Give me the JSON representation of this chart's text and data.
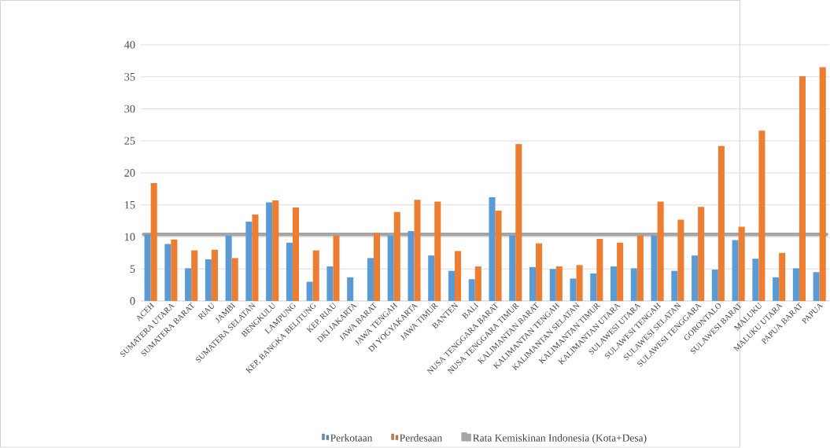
{
  "chart_data": {
    "type": "bar",
    "categories": [
      "ACEH",
      "SUMATERA UTARA",
      "SUMATERA BARAT",
      "RIAU",
      "JAMBI",
      "SUMATERA SELATAN",
      "BENGKULU",
      "LAMPUNG",
      "KEP, BANGKA BELITUNG",
      "KEP. RIAU",
      "DKI JAKARTA",
      "JAWA BARAT",
      "JAWA TENGAH",
      "DI YOGYAKARTA",
      "JAWA TIMUR",
      "BANTEN",
      "BALI",
      "NUSA TENGGARA BARAT",
      "NUSA TENGGARA TIMUR",
      "KALIMANTAN BARAT",
      "KALIMANTAN TENGAH",
      "KALIMANTAN SELATAN",
      "KALIMANTAN TIMUR",
      "KALIMANTAN UTARA",
      "SULAWESI UTARA",
      "SULAWESI TENGAH",
      "SULAWESI SELATAN",
      "SULAWESI TENGGARA",
      "GORONTALO",
      "SULAWESI BARAT",
      "MALUKU",
      "MALUKU UTARA",
      "PAPUA BARAT",
      "PAPUA"
    ],
    "series": [
      {
        "name": "Perkotaan",
        "color": "#5b9bd5",
        "values": [
          10.4,
          8.9,
          5.1,
          6.5,
          10.2,
          12.4,
          15.4,
          9.1,
          3.0,
          5.4,
          3.7,
          6.7,
          10.2,
          10.9,
          7.1,
          4.7,
          3.4,
          16.2,
          10.2,
          5.3,
          5.0,
          3.5,
          4.3,
          5.4,
          5.1,
          10.2,
          4.7,
          7.1,
          4.9,
          9.5,
          6.6,
          3.7,
          5.1,
          4.5
        ]
      },
      {
        "name": "Perdesaan",
        "color": "#ed7d31",
        "values": [
          18.4,
          9.6,
          7.9,
          8.0,
          6.7,
          13.5,
          15.7,
          14.6,
          7.9,
          10.2,
          null,
          10.6,
          13.9,
          15.8,
          15.5,
          7.8,
          5.4,
          14.1,
          24.5,
          9.0,
          5.4,
          5.6,
          9.7,
          9.1,
          10.2,
          15.5,
          12.7,
          14.7,
          24.2,
          11.6,
          26.6,
          7.5,
          35.1,
          36.5
        ]
      }
    ],
    "ref_lines": [
      {
        "axis": "y",
        "value": 10.4,
        "label": "Rata Kemiskinan Indonesia (Kota+Desa)",
        "color": "#a5a5a5"
      }
    ],
    "ylim": [
      0,
      40
    ],
    "yticks": [
      0,
      5,
      10,
      15,
      20,
      25,
      30,
      35,
      40
    ],
    "grid": "y",
    "legend": "bottom"
  }
}
